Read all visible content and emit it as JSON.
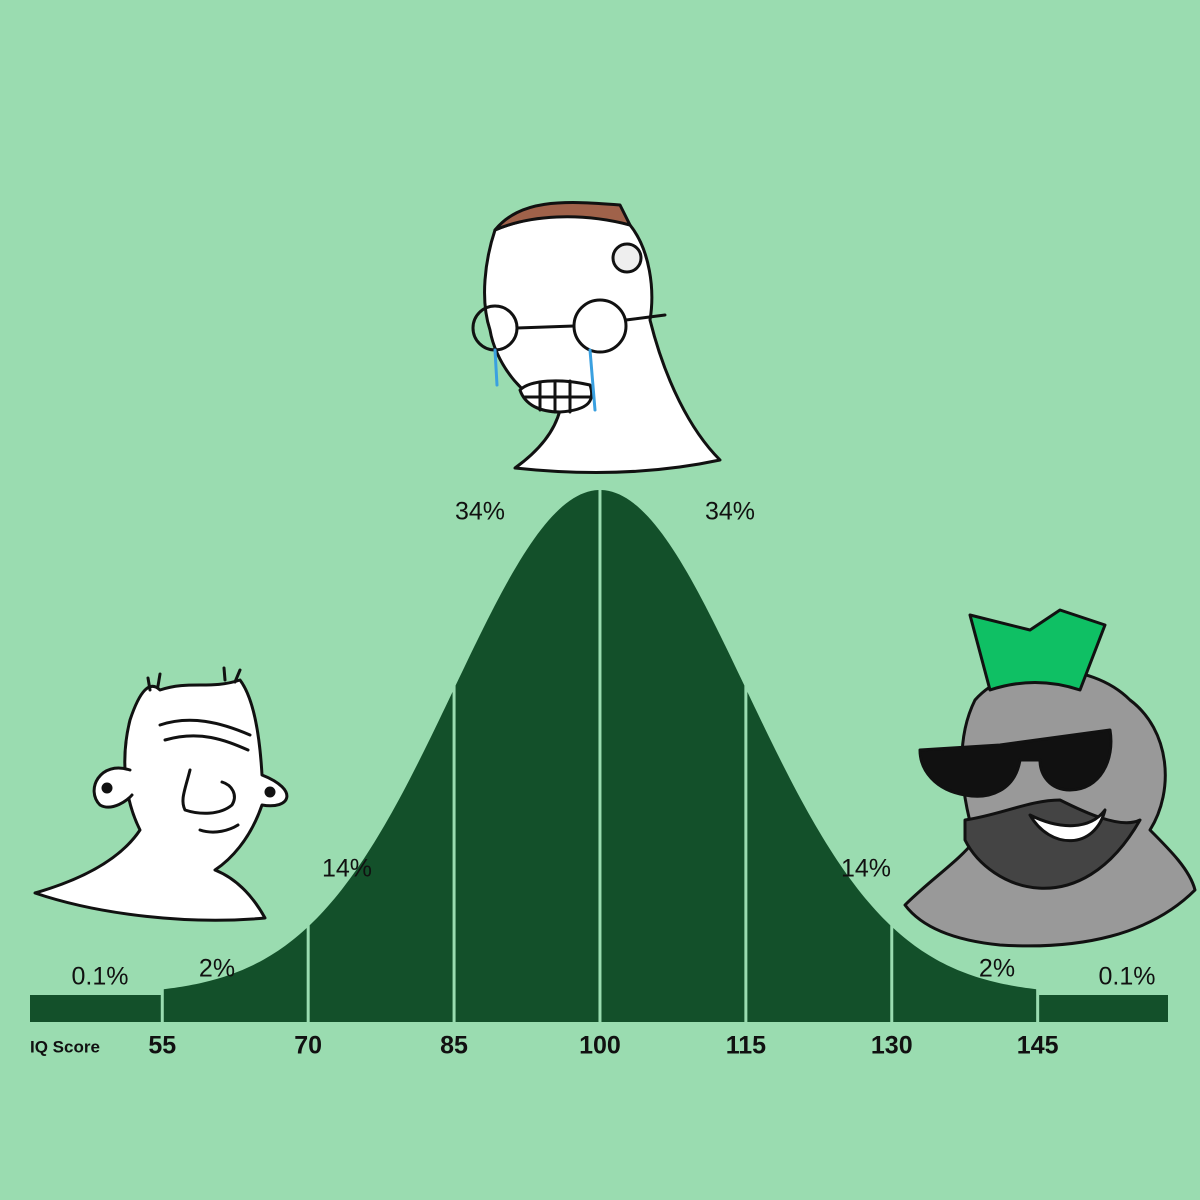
{
  "chart_data": {
    "type": "bell",
    "xlabel": "IQ Score",
    "xlim": [
      41.4,
      158.4
    ],
    "xticks": [
      55,
      70,
      85,
      100,
      115,
      130,
      145
    ],
    "values": [
      0.1,
      2,
      14,
      34,
      34,
      14,
      2,
      0.1
    ],
    "value_labels": [
      "0.1%",
      "2%",
      "14%",
      "34%",
      "34%",
      "14%",
      "2%",
      "0.1%"
    ],
    "color": "#13502a"
  }
}
